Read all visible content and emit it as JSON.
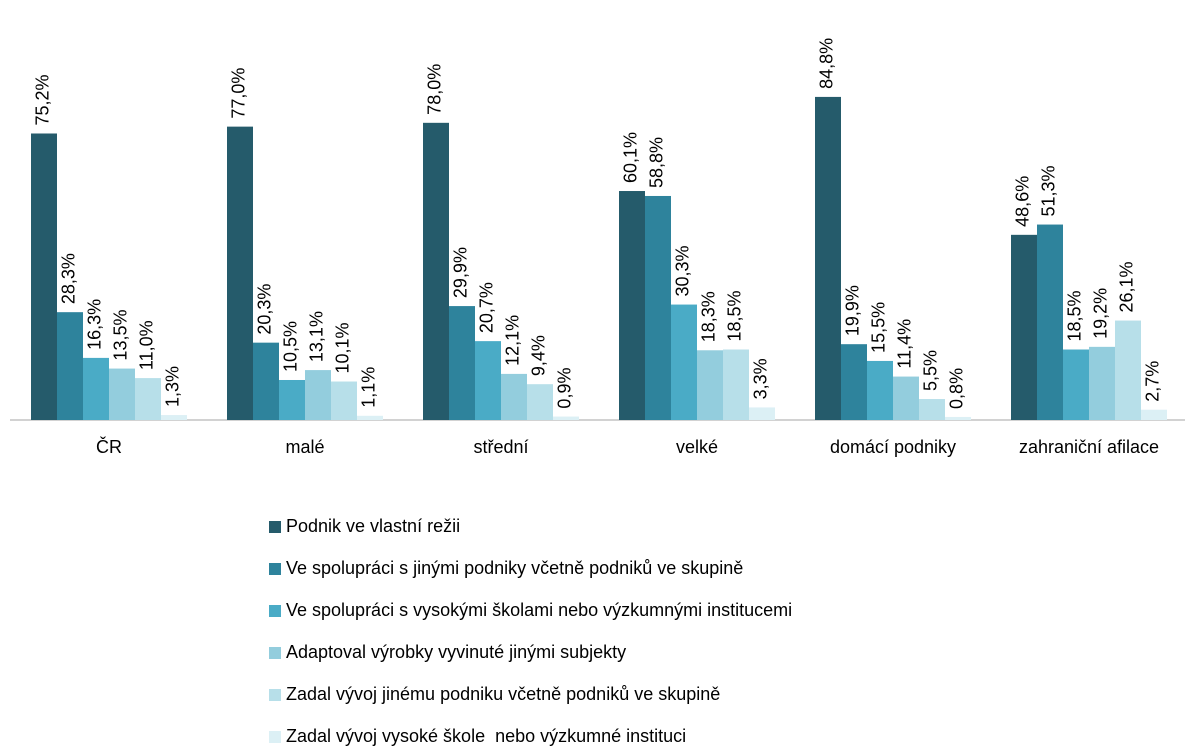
{
  "chart_data": {
    "type": "bar",
    "categories": [
      "ČR",
      "malé",
      "střední",
      "velké",
      "domácí podniky",
      "zahraniční afilace"
    ],
    "ylim": [
      0,
      100
    ],
    "series": [
      {
        "name": "Podnik ve vlastní režii",
        "color": "#255b6b",
        "values": [
          75.2,
          77.0,
          78.0,
          60.1,
          84.8,
          48.6
        ],
        "value_labels": [
          "75,2%",
          "77,0%",
          "78,0%",
          "60,1%",
          "84,8%",
          "48,6%"
        ]
      },
      {
        "name": "Ve spolupráci s jinými podniky včetně podniků ve skupině",
        "color": "#2e839c",
        "values": [
          28.3,
          20.3,
          29.9,
          58.8,
          19.9,
          51.3
        ],
        "value_labels": [
          "28,3%",
          "20,3%",
          "29,9%",
          "58,8%",
          "19,9%",
          "51,3%"
        ]
      },
      {
        "name": "Ve spolupráci s vysokými školami nebo výzkumnými institucemi",
        "color": "#4aabc6",
        "values": [
          16.3,
          10.5,
          20.7,
          30.3,
          15.5,
          18.5
        ],
        "value_labels": [
          "16,3%",
          "10,5%",
          "20,7%",
          "30,3%",
          "15,5%",
          "18,5%"
        ]
      },
      {
        "name": "Adaptoval výrobky vyvinuté jinými subjekty",
        "color": "#93cddd",
        "values": [
          13.5,
          13.1,
          12.1,
          18.3,
          11.4,
          19.2
        ],
        "value_labels": [
          "13,5%",
          "13,1%",
          "12,1%",
          "18,3%",
          "11,4%",
          "19,2%"
        ]
      },
      {
        "name": "Zadal vývoj jinému podniku včetně podniků ve skupině",
        "color": "#b7dfe9",
        "values": [
          11.0,
          10.1,
          9.4,
          18.5,
          5.5,
          26.1
        ],
        "value_labels": [
          "11,0%",
          "10,1%",
          "9,4%",
          "18,5%",
          "5,5%",
          "26,1%"
        ]
      },
      {
        "name": "Zadal vývoj vysoké škole  nebo výzkumné instituci",
        "color": "#dcf0f5",
        "values": [
          1.3,
          1.1,
          0.9,
          3.3,
          0.8,
          2.7
        ],
        "value_labels": [
          "1,3%",
          "1,1%",
          "0,9%",
          "3,3%",
          "0,8%",
          "2,7%"
        ]
      }
    ]
  }
}
